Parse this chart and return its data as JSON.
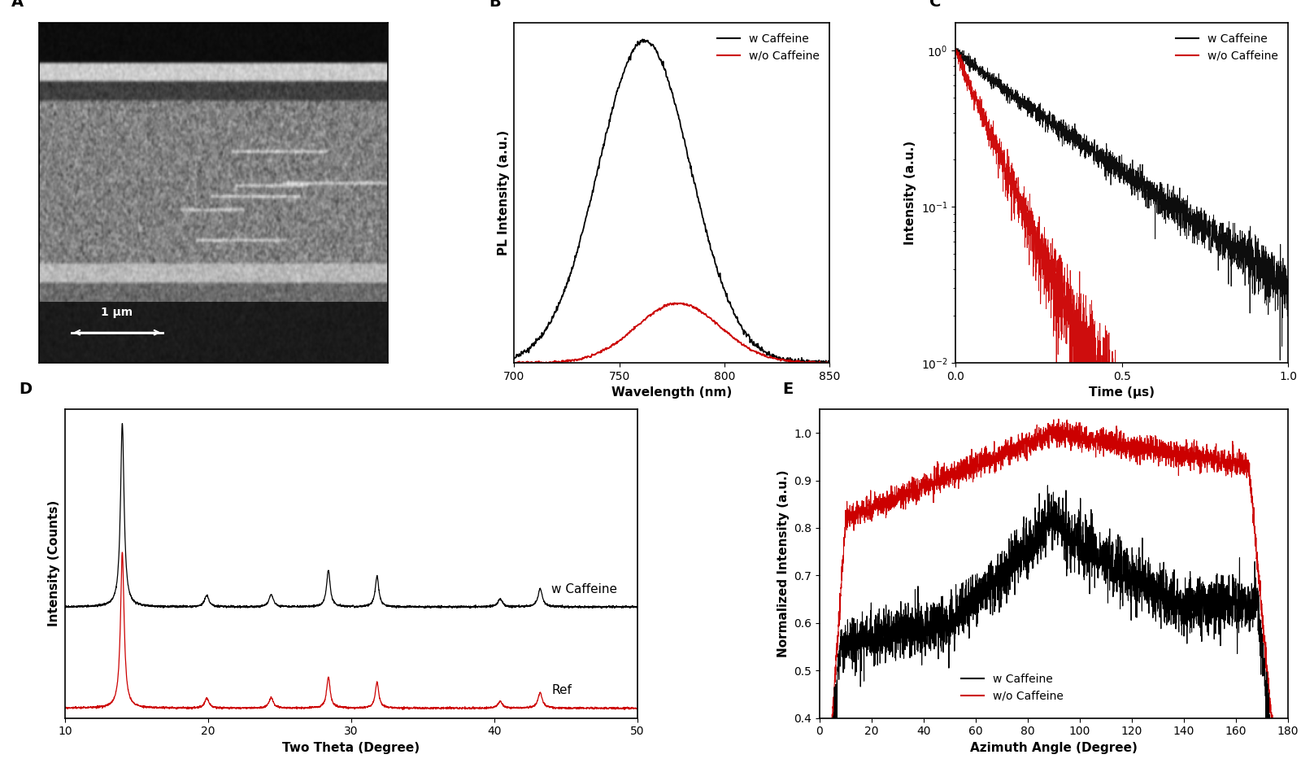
{
  "panel_labels": [
    "A",
    "B",
    "C",
    "D",
    "E"
  ],
  "panel_label_fontsize": 14,
  "panel_label_fontweight": "bold",
  "B_xlabel": "Wavelength (nm)",
  "B_ylabel": "PL Intensity (a.u.)",
  "B_xlim": [
    700,
    850
  ],
  "B_xticks": [
    700,
    750,
    800,
    850
  ],
  "B_legend_caffeine": "w Caffeine",
  "B_legend_no_caffeine": "w/o Caffeine",
  "C_xlabel": "Time (μs)",
  "C_ylabel": "Intensity (a.u.)",
  "C_xlim": [
    0.0,
    1.0
  ],
  "C_xticks": [
    0.0,
    0.5,
    1.0
  ],
  "C_ylim_log": [
    0.01,
    1.5
  ],
  "C_legend_caffeine": "w Caffeine",
  "C_legend_no_caffeine": "w/o Caffeine",
  "D_xlabel": "Two Theta (Degree)",
  "D_ylabel": "Intensity (Counts)",
  "D_xlim": [
    10,
    50
  ],
  "D_xticks": [
    10,
    20,
    30,
    40,
    50
  ],
  "D_label_caffeine": "w Caffeine",
  "D_label_ref": "Ref",
  "E_xlabel": "Azimuth Angle (Degree)",
  "E_ylabel": "Normalized Intensity (a.u.)",
  "E_xlim": [
    0,
    180
  ],
  "E_xticks": [
    0,
    20,
    40,
    60,
    80,
    100,
    120,
    140,
    160,
    180
  ],
  "E_ylim": [
    0.4,
    1.05
  ],
  "E_legend_caffeine": "w Caffeine",
  "E_legend_no_caffeine": "w/o Caffeine",
  "color_black": "#000000",
  "color_red": "#CC0000",
  "axis_label_fontsize": 11,
  "tick_fontsize": 10,
  "legend_fontsize": 10,
  "line_width": 1.0,
  "scale_bar_text": "1 μm"
}
